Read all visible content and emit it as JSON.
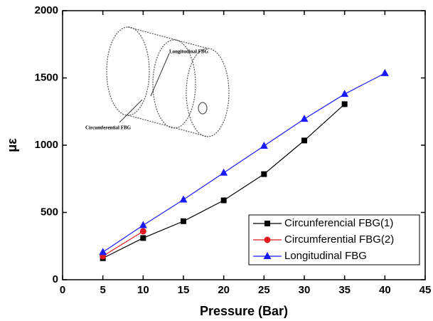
{
  "chart_data": {
    "type": "line",
    "x_label": "Pressure (Bar)",
    "y_label": "με",
    "x": [
      5,
      10,
      15,
      20,
      25,
      30,
      35,
      40
    ],
    "series": [
      {
        "name": "Circunferencial FBG(1)",
        "color": "#000000",
        "marker": "square",
        "values": [
          160,
          310,
          435,
          590,
          785,
          1035,
          1305,
          null
        ]
      },
      {
        "name": "Circumferential FBG(2)",
        "color": "#e0191f",
        "marker": "circle",
        "values": [
          175,
          360,
          null,
          null,
          null,
          null,
          null,
          null
        ]
      },
      {
        "name": "Longitudinal FBG",
        "color": "#1a1aff",
        "marker": "triangle",
        "values": [
          205,
          405,
          595,
          795,
          995,
          1195,
          1380,
          1535
        ]
      }
    ],
    "xlim": [
      0,
      45
    ],
    "xticks": [
      0,
      5,
      10,
      15,
      20,
      25,
      30,
      35,
      40,
      45
    ],
    "ylim": [
      0,
      2000
    ],
    "yticks": [
      0,
      500,
      1000,
      1500,
      2000
    ],
    "legend": "lower right",
    "annotations": [
      "Longitudinal FBG",
      "Circumferential FBG"
    ]
  }
}
